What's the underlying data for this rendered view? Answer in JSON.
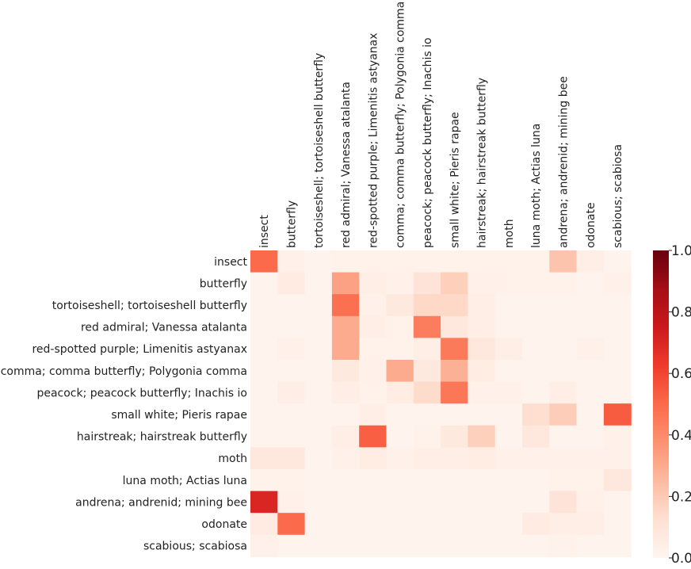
{
  "chart_data": {
    "type": "heatmap",
    "title": "",
    "xlabel": "",
    "ylabel": "",
    "x_labels": [
      "insect",
      "butterfly",
      "tortoiseshell; tortoiseshell butterfly",
      "red admiral; Vanessa atalanta",
      "red-spotted purple; Limenitis astyanax",
      "comma; comma butterfly; Polygonia comma",
      "peacock; peacock butterfly; Inachis io",
      "small white; Pieris rapae",
      "hairstreak; hairstreak butterfly",
      "moth",
      "luna moth; Actias luna",
      "andrena; andrenid; mining bee",
      "odonate",
      "scabious; scabiosa"
    ],
    "y_labels": [
      "insect",
      "butterfly",
      "tortoiseshell; tortoiseshell butterfly",
      "red admiral; Vanessa atalanta",
      "red-spotted purple; Limenitis astyanax",
      "comma; comma butterfly; Polygonia comma",
      "peacock; peacock butterfly; Inachis io",
      "small white; Pieris rapae",
      "hairstreak; hairstreak butterfly",
      "moth",
      "luna moth; Actias luna",
      "andrena; andrenid; mining bee",
      "odonate",
      "scabious; scabiosa"
    ],
    "values": [
      [
        0.5,
        0.03,
        0.01,
        0.02,
        0.02,
        0.02,
        0.02,
        0.02,
        0.02,
        0.02,
        0.02,
        0.22,
        0.04,
        0.01
      ],
      [
        0.01,
        0.06,
        0.01,
        0.33,
        0.04,
        0.03,
        0.1,
        0.18,
        0.03,
        0.02,
        0.02,
        0.02,
        0.01,
        0.03
      ],
      [
        0.01,
        0.01,
        0.01,
        0.48,
        0.03,
        0.07,
        0.15,
        0.15,
        0.04,
        0.01,
        0.01,
        0.01,
        0.01,
        0.01
      ],
      [
        0.01,
        0.01,
        0.01,
        0.3,
        0.04,
        0.02,
        0.44,
        0.08,
        0.04,
        0.01,
        0.01,
        0.01,
        0.01,
        0.01
      ],
      [
        0.01,
        0.03,
        0.01,
        0.3,
        0.02,
        0.02,
        0.04,
        0.45,
        0.08,
        0.04,
        0.01,
        0.01,
        0.03,
        0.01
      ],
      [
        0.01,
        0.01,
        0.01,
        0.07,
        0.03,
        0.3,
        0.07,
        0.28,
        0.05,
        0.01,
        0.01,
        0.01,
        0.01,
        0.01
      ],
      [
        0.01,
        0.04,
        0.01,
        0.04,
        0.02,
        0.05,
        0.14,
        0.46,
        0.03,
        0.03,
        0.01,
        0.04,
        0.01,
        0.01
      ],
      [
        0.01,
        0.01,
        0.01,
        0.01,
        0.04,
        0.01,
        0.01,
        0.01,
        0.01,
        0.01,
        0.13,
        0.19,
        0.01,
        0.54
      ],
      [
        0.01,
        0.01,
        0.01,
        0.04,
        0.53,
        0.01,
        0.02,
        0.07,
        0.18,
        0.01,
        0.08,
        0.01,
        0.01,
        0.03
      ],
      [
        0.08,
        0.08,
        0.01,
        0.03,
        0.05,
        0.03,
        0.04,
        0.04,
        0.05,
        0.03,
        0.03,
        0.03,
        0.03,
        0.03
      ],
      [
        0.02,
        0.02,
        0.01,
        0.01,
        0.01,
        0.01,
        0.01,
        0.01,
        0.01,
        0.01,
        0.01,
        0.02,
        0.02,
        0.08
      ],
      [
        0.7,
        0.03,
        0.01,
        0.01,
        0.01,
        0.01,
        0.01,
        0.01,
        0.01,
        0.01,
        0.01,
        0.1,
        0.03,
        0.01
      ],
      [
        0.06,
        0.5,
        0.01,
        0.01,
        0.01,
        0.01,
        0.01,
        0.01,
        0.01,
        0.01,
        0.06,
        0.04,
        0.04,
        0.01
      ],
      [
        0.03,
        0.01,
        0.01,
        0.01,
        0.01,
        0.01,
        0.01,
        0.01,
        0.01,
        0.01,
        0.01,
        0.02,
        0.01,
        0.01
      ]
    ],
    "colormap": "Reds",
    "vmin": 0.0,
    "vmax": 1.0,
    "colorbar_ticks": [
      "0.0",
      "0.2",
      "0.4",
      "0.6",
      "0.8",
      "1.0"
    ],
    "colors": [
      "#fff5f0",
      "#fee0d2",
      "#fcbba1",
      "#fc9272",
      "#fb6a4a",
      "#ef3b2c",
      "#cb181d",
      "#a50f15",
      "#67000d"
    ]
  }
}
